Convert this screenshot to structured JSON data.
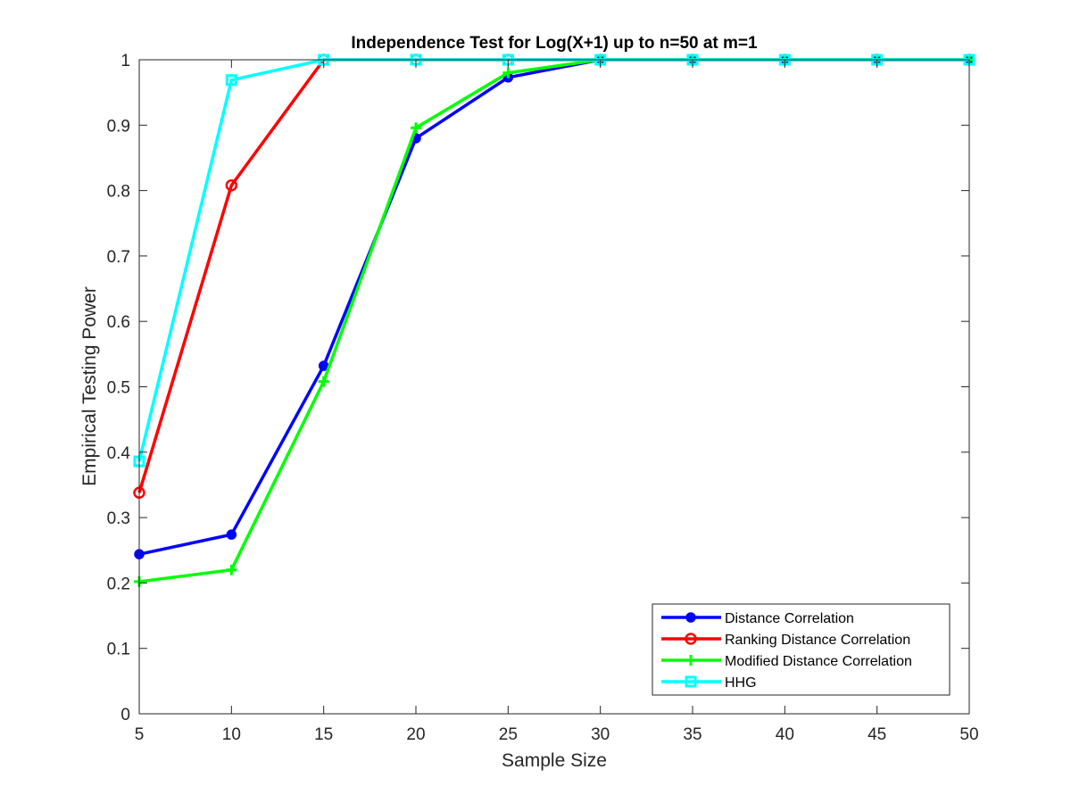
{
  "chart_data": {
    "type": "line",
    "title": "Independence Test for Log(X+1) up to n=50 at m=1",
    "xlabel": "Sample Size",
    "ylabel": "Empirical Testing Power",
    "xlim": [
      5,
      50
    ],
    "ylim": [
      0,
      1
    ],
    "grid": false,
    "legend_position": "bottom-right",
    "x_ticks": [
      "5",
      "10",
      "15",
      "20",
      "25",
      "30",
      "35",
      "40",
      "45",
      "50"
    ],
    "y_ticks": [
      "0",
      "0.1",
      "0.2",
      "0.3",
      "0.4",
      "0.5",
      "0.6",
      "0.7",
      "0.8",
      "0.9",
      "1"
    ],
    "x": [
      5,
      10,
      15,
      20,
      25,
      30,
      35,
      40,
      45,
      50
    ],
    "series": [
      {
        "name": "Distance Correlation",
        "color": "#0000ff",
        "marker": "filled-circle",
        "values": [
          0.244,
          0.274,
          0.532,
          0.88,
          0.973,
          1,
          1,
          1,
          1,
          1
        ]
      },
      {
        "name": "Ranking Distance Correlation",
        "color": "#ff0000",
        "marker": "open-circle",
        "values": [
          0.338,
          0.808,
          1,
          1,
          1,
          1,
          1,
          1,
          1,
          1
        ]
      },
      {
        "name": "Modified Distance Correlation",
        "color": "#00ff00",
        "marker": "plus",
        "values": [
          0.202,
          0.22,
          0.508,
          0.896,
          0.98,
          1,
          1,
          1,
          1,
          1
        ]
      },
      {
        "name": "HHG",
        "color": "#00ffff",
        "marker": "square",
        "values": [
          0.386,
          0.969,
          1,
          1,
          1,
          1,
          1,
          1,
          1,
          1
        ]
      }
    ]
  }
}
